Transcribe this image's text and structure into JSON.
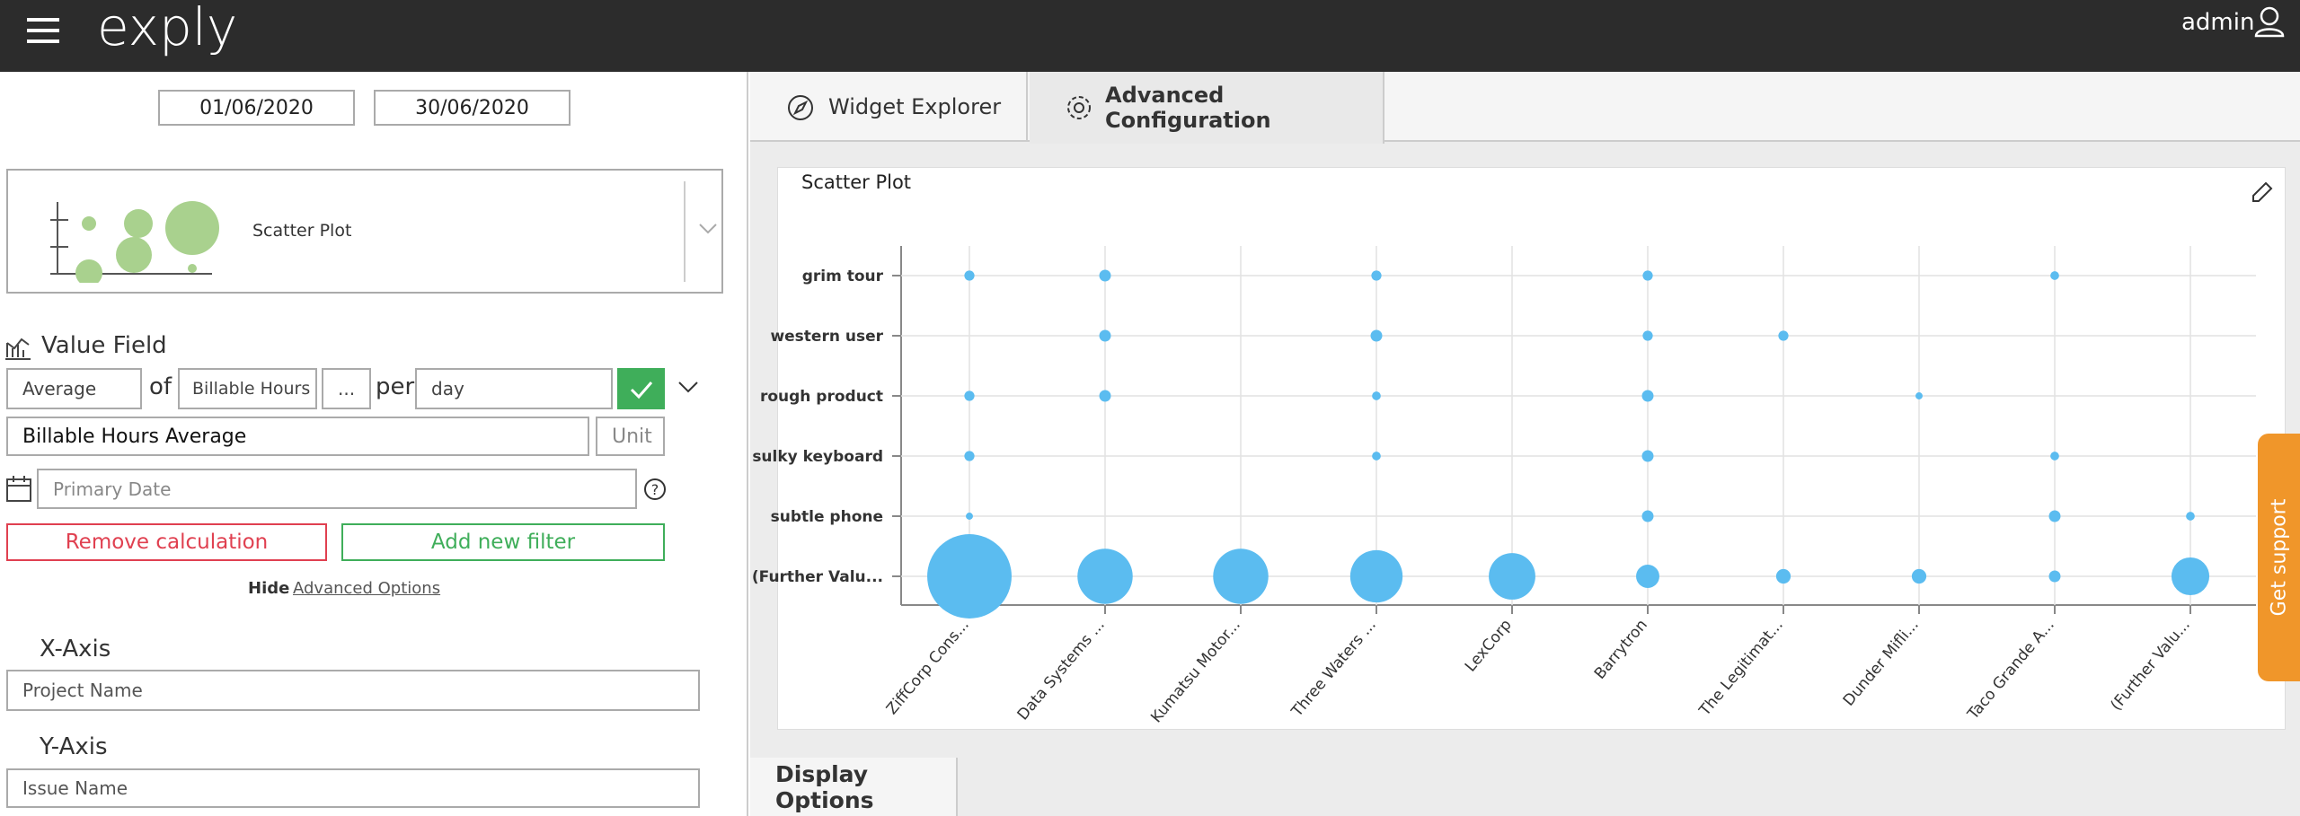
{
  "header": {
    "logo": "exply",
    "user": "admin"
  },
  "filters": {
    "start_date": "01/06/2020",
    "end_date": "30/06/2020"
  },
  "widget_type": "Scatter Plot",
  "value_field": {
    "title": "Value Field",
    "aggregation": "Average",
    "of": "of",
    "field": "Billable Hours",
    "more": "...",
    "per": "per",
    "period": "day",
    "name": "Billable Hours Average",
    "unit": "Unit",
    "date": "Primary Date",
    "remove": "Remove calculation",
    "add_filter": "Add new filter",
    "hide": "Hide",
    "advanced": "Advanced Options"
  },
  "x_axis": {
    "title": "X-Axis",
    "field": "Project Name"
  },
  "y_axis": {
    "title": "Y-Axis",
    "field": "Issue Name"
  },
  "tabs": [
    "Widget Explorer",
    "Advanced Configuration"
  ],
  "display_options": "Display Options",
  "support": "Get support",
  "chart_data": {
    "type": "scatter",
    "title": "Scatter Plot",
    "grid": true,
    "categories": [
      "ZiffCorp Cons...",
      "Data Systems ...",
      "Kumatsu Motor...",
      "Three Waters ...",
      "LexCorp",
      "Barrytron",
      "The Legitimat...",
      "Dunder Mifli...",
      "Taco Grande A...",
      "(Further Valu..."
    ],
    "series": [
      {
        "name": "grim tour",
        "color": "#5bbcf0",
        "values": [
          12,
          16,
          null,
          12,
          null,
          12,
          null,
          null,
          9,
          null
        ]
      },
      {
        "name": "western user",
        "color": "#5bbcf0",
        "values": [
          null,
          16,
          null,
          16,
          null,
          12,
          12,
          null,
          null,
          null
        ]
      },
      {
        "name": "rough product",
        "color": "#5bbcf0",
        "values": [
          12,
          16,
          null,
          9,
          null,
          16,
          null,
          6,
          null,
          null
        ]
      },
      {
        "name": "sulky keyboard",
        "color": "#5bbcf0",
        "values": [
          12,
          null,
          null,
          9,
          null,
          16,
          null,
          null,
          9,
          null
        ]
      },
      {
        "name": "subtle phone",
        "color": "#5bbcf0",
        "values": [
          6,
          null,
          null,
          null,
          null,
          16,
          null,
          null,
          16,
          9
        ]
      },
      {
        "name": "(Further Valu...",
        "color": "#5bbcf0",
        "values": [
          840,
          360,
          360,
          324,
          256,
          64,
          25,
          25,
          16,
          169
        ]
      }
    ]
  }
}
